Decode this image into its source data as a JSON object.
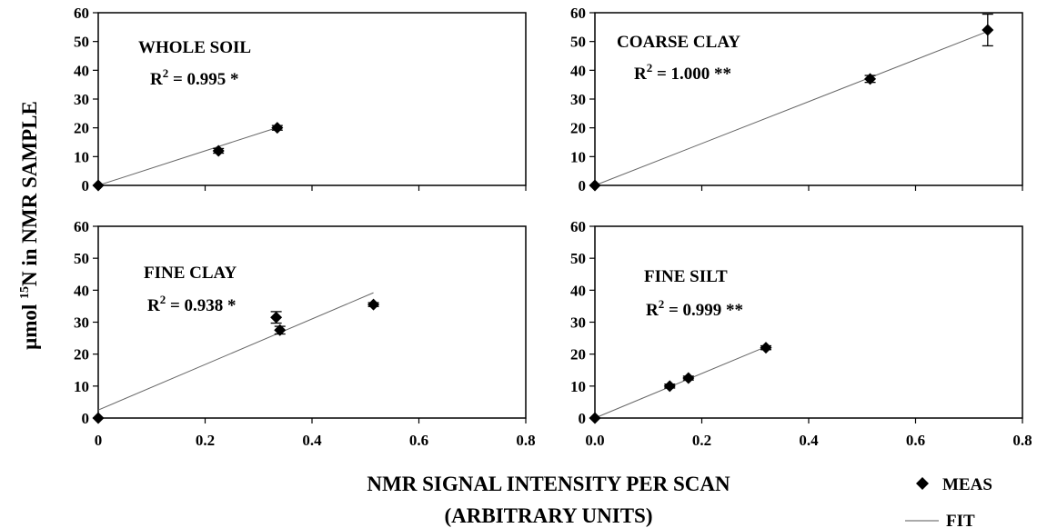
{
  "figure": {
    "ylabel": {
      "prefix": "μmol ",
      "sup": "15",
      "suffix": "N in NMR SAMPLE"
    },
    "xlabel_line1": "NMR SIGNAL INTENSITY PER SCAN",
    "xlabel_line2": "(ARBITRARY UNITS)",
    "legend": {
      "meas": "MEAS",
      "fit": "FIT"
    }
  },
  "chart_data": [
    {
      "type": "scatter",
      "title": "WHOLE SOIL",
      "r2": {
        "prefix": "R",
        "sup": "2",
        "value": " = 0.995 *"
      },
      "xlim": [
        0,
        0.8
      ],
      "ylim": [
        0,
        60
      ],
      "xticks": [
        "",
        "",
        "",
        "",
        ""
      ],
      "yticks": [
        "0",
        "10",
        "20",
        "30",
        "40",
        "50",
        "60"
      ],
      "series": [
        {
          "name": "MEAS",
          "points": [
            {
              "x": 0,
              "y": 0,
              "err": 0
            },
            {
              "x": 0.225,
              "y": 12,
              "err": 0.8
            },
            {
              "x": 0.335,
              "y": 20,
              "err": 0.8
            }
          ]
        },
        {
          "name": "FIT",
          "line": [
            [
              0,
              0
            ],
            [
              0.335,
              20.1
            ]
          ]
        }
      ]
    },
    {
      "type": "scatter",
      "title": "COARSE CLAY",
      "r2": {
        "prefix": "R",
        "sup": "2",
        "value": " = 1.000 **"
      },
      "xlim": [
        0,
        0.8
      ],
      "ylim": [
        0,
        60
      ],
      "xticks": [
        "",
        "",
        "",
        "",
        ""
      ],
      "yticks": [
        "0",
        "10",
        "20",
        "30",
        "40",
        "50",
        "60"
      ],
      "series": [
        {
          "name": "MEAS",
          "points": [
            {
              "x": 0,
              "y": 0,
              "err": 0
            },
            {
              "x": 0.515,
              "y": 37,
              "err": 1.2
            },
            {
              "x": 0.735,
              "y": 54,
              "err": 5.5
            }
          ]
        },
        {
          "name": "FIT",
          "line": [
            [
              0,
              0
            ],
            [
              0.735,
              53.5
            ]
          ]
        }
      ]
    },
    {
      "type": "scatter",
      "title": "FINE CLAY",
      "r2": {
        "prefix": "R",
        "sup": "2",
        "value": " = 0.938 *"
      },
      "xlim": [
        0,
        0.8
      ],
      "ylim": [
        0,
        60
      ],
      "xticks": [
        "0",
        "0.2",
        "0.4",
        "0.6",
        "0.8"
      ],
      "yticks": [
        "0",
        "10",
        "20",
        "30",
        "40",
        "50",
        "60"
      ],
      "series": [
        {
          "name": "MEAS",
          "points": [
            {
              "x": 0,
              "y": 0,
              "err": 0
            },
            {
              "x": 0.333,
              "y": 31.5,
              "err": 1.8
            },
            {
              "x": 0.34,
              "y": 27.5,
              "err": 1.2
            },
            {
              "x": 0.515,
              "y": 35.5,
              "err": 0.6
            }
          ]
        },
        {
          "name": "FIT",
          "line": [
            [
              0,
              2.5
            ],
            [
              0.515,
              39.2
            ]
          ]
        }
      ]
    },
    {
      "type": "scatter",
      "title": "FINE SILT",
      "r2": {
        "prefix": "R",
        "sup": "2",
        "value": " = 0.999 **"
      },
      "xlim": [
        0,
        0.8
      ],
      "ylim": [
        0,
        60
      ],
      "xticks": [
        "0.0",
        "0.2",
        "0.4",
        "0.6",
        "0.8"
      ],
      "yticks": [
        "0",
        "10",
        "20",
        "30",
        "40",
        "50",
        "60"
      ],
      "series": [
        {
          "name": "MEAS",
          "points": [
            {
              "x": 0,
              "y": 0,
              "err": 0
            },
            {
              "x": 0.14,
              "y": 10,
              "err": 0.6
            },
            {
              "x": 0.175,
              "y": 12.5,
              "err": 0.6
            },
            {
              "x": 0.32,
              "y": 22,
              "err": 0.6
            }
          ]
        },
        {
          "name": "FIT",
          "line": [
            [
              0,
              0
            ],
            [
              0.32,
              22.3
            ]
          ]
        }
      ]
    }
  ]
}
